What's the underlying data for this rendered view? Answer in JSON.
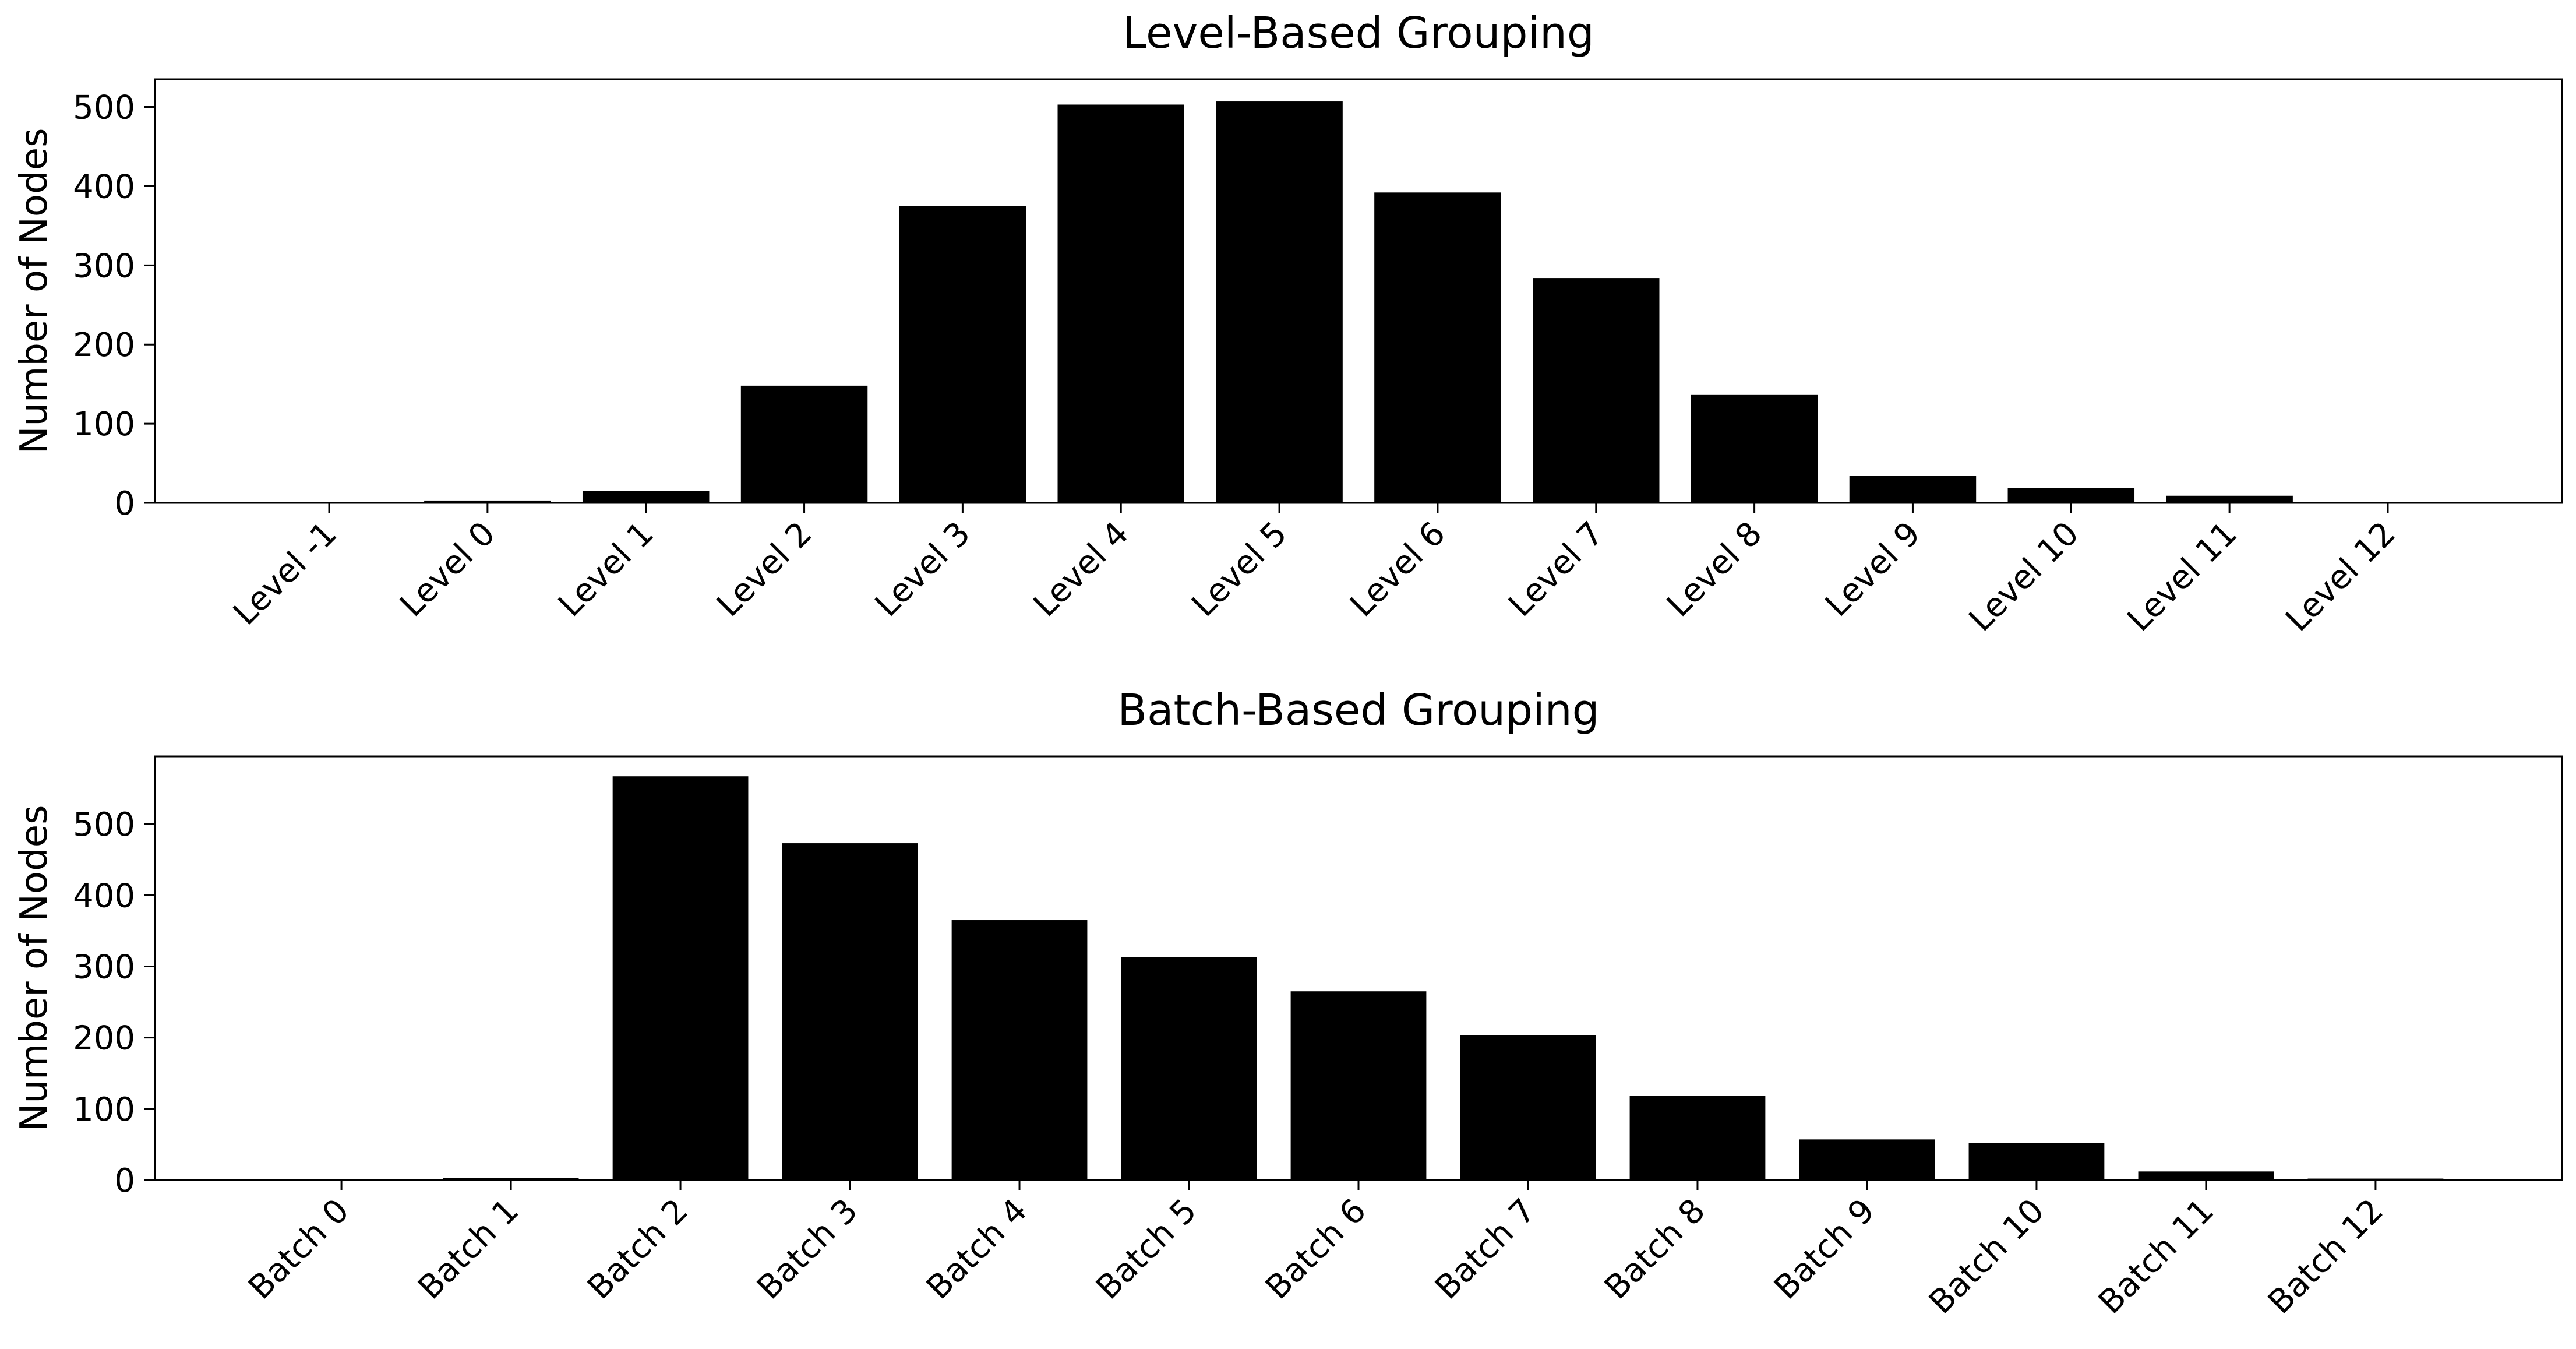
{
  "chart_data": [
    {
      "type": "bar",
      "title": "Level-Based Grouping",
      "xlabel": "",
      "ylabel": "Number of Nodes",
      "categories": [
        "Level -1",
        "Level 0",
        "Level 1",
        "Level 2",
        "Level 3",
        "Level 4",
        "Level 5",
        "Level 6",
        "Level 7",
        "Level 8",
        "Level 9",
        "Level 10",
        "Level 11",
        "Level 12"
      ],
      "values": [
        0,
        3,
        15,
        148,
        375,
        503,
        507,
        392,
        284,
        137,
        34,
        19,
        9,
        1
      ],
      "ylim": [
        0,
        535
      ],
      "yticks": [
        0,
        100,
        200,
        300,
        400,
        500
      ],
      "bar_color": "#000000",
      "grid": false,
      "legend": "none"
    },
    {
      "type": "bar",
      "title": "Batch-Based Grouping",
      "xlabel": "",
      "ylabel": "Number of Nodes",
      "categories": [
        "Batch 0",
        "Batch 1",
        "Batch 2",
        "Batch 3",
        "Batch 4",
        "Batch 5",
        "Batch 6",
        "Batch 7",
        "Batch 8",
        "Batch 9",
        "Batch 10",
        "Batch 11",
        "Batch 12"
      ],
      "values": [
        0,
        3,
        567,
        473,
        365,
        313,
        265,
        203,
        118,
        57,
        52,
        12,
        2
      ],
      "ylim": [
        0,
        595
      ],
      "yticks": [
        0,
        100,
        200,
        300,
        400,
        500
      ],
      "bar_color": "#000000",
      "grid": false,
      "legend": "none"
    }
  ]
}
